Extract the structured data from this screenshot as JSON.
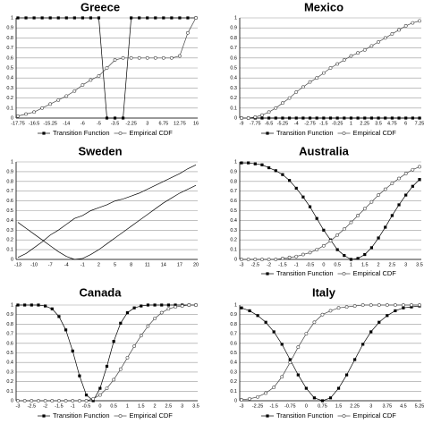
{
  "chart_data": [
    {
      "type": "line",
      "title": "Greece",
      "categories": [
        "-17.75",
        null,
        "-16.5",
        null,
        "-15.25",
        null,
        "-14",
        null,
        "-6",
        null,
        "-5",
        null,
        "-3.5",
        null,
        "-2.25",
        null,
        "3",
        null,
        "6.75",
        null,
        "12.75",
        null,
        "16"
      ],
      "series": [
        {
          "name": "Transition Function",
          "color": "#000000",
          "marker": "square",
          "values": [
            1,
            1,
            1,
            1,
            1,
            1,
            1,
            1,
            1,
            1,
            1,
            0,
            0,
            0,
            1,
            1,
            1,
            1,
            1,
            1,
            1,
            1,
            1
          ]
        },
        {
          "name": "Empirical CDF",
          "color": "#444444",
          "marker": "circle",
          "values": [
            0.02,
            0.04,
            0.06,
            0.1,
            0.14,
            0.18,
            0.22,
            0.27,
            0.33,
            0.38,
            0.42,
            0.5,
            0.58,
            0.6,
            0.6,
            0.6,
            0.6,
            0.6,
            0.6,
            0.6,
            0.62,
            0.85,
            1
          ]
        }
      ],
      "ylim": [
        0,
        1
      ],
      "yticks": [
        0,
        0.1,
        0.2,
        0.3,
        0.4,
        0.5,
        0.6,
        0.7,
        0.8,
        0.9,
        1
      ],
      "grid": true
    },
    {
      "type": "line",
      "title": "Mexico",
      "categories": [
        "-9",
        null,
        "-7.75",
        null,
        "-6.5",
        null,
        "-5.25",
        null,
        "-4",
        null,
        "-2.75",
        null,
        "-1.5",
        null,
        "-0.25",
        null,
        "1",
        null,
        "2.25",
        null,
        "3.5",
        null,
        "4.75",
        null,
        "6",
        null,
        "7.25"
      ],
      "series": [
        {
          "name": "Transition Function",
          "color": "#000000",
          "marker": "square",
          "values": [
            0,
            0,
            0,
            0,
            0,
            0,
            0,
            0,
            0,
            0,
            0,
            0,
            0,
            0,
            0,
            0,
            0,
            0,
            0,
            0,
            0,
            0,
            0,
            0,
            0,
            0,
            0
          ]
        },
        {
          "name": "Empirical CDF",
          "color": "#444444",
          "marker": "circle",
          "values": [
            0,
            0,
            0.01,
            0.03,
            0.06,
            0.1,
            0.15,
            0.2,
            0.26,
            0.31,
            0.36,
            0.4,
            0.45,
            0.5,
            0.54,
            0.58,
            0.62,
            0.65,
            0.68,
            0.72,
            0.76,
            0.8,
            0.84,
            0.88,
            0.92,
            0.95,
            0.97
          ]
        }
      ],
      "ylim": [
        0,
        1
      ],
      "yticks": [
        0,
        0.1,
        0.2,
        0.3,
        0.4,
        0.5,
        0.6,
        0.7,
        0.8,
        0.9,
        1
      ],
      "grid": true
    },
    {
      "type": "line",
      "title": "Sweden",
      "categories": [
        "-13",
        null,
        "-10",
        null,
        "-7",
        null,
        "-4",
        null,
        "-1",
        null,
        "2",
        null,
        "5",
        null,
        "8",
        null,
        "11",
        null,
        "14",
        null,
        "17",
        null,
        "20"
      ],
      "series": [
        {
          "color": "#000000",
          "marker": "none",
          "values": [
            0.38,
            0.32,
            0.26,
            0.2,
            0.14,
            0.08,
            0.03,
            0,
            0.01,
            0.05,
            0.1,
            0.16,
            0.22,
            0.28,
            0.34,
            0.4,
            0.46,
            0.52,
            0.58,
            0.63,
            0.68,
            0.72,
            0.76
          ]
        },
        {
          "color": "#000000",
          "marker": "none",
          "values": [
            0.02,
            0.06,
            0.12,
            0.18,
            0.25,
            0.3,
            0.36,
            0.42,
            0.45,
            0.5,
            0.53,
            0.56,
            0.6,
            0.62,
            0.65,
            0.68,
            0.72,
            0.76,
            0.8,
            0.84,
            0.88,
            0.93,
            0.97
          ]
        }
      ],
      "ylim": [
        0,
        1
      ],
      "yticks": [
        0,
        0.1,
        0.2,
        0.3,
        0.4,
        0.5,
        0.6,
        0.7,
        0.8,
        0.9,
        1
      ],
      "grid": true
    },
    {
      "type": "line",
      "title": "Australia",
      "categories": [
        "-3",
        null,
        "-2.5",
        null,
        "-2",
        null,
        "-1.5",
        null,
        "-1",
        null,
        "-0.5",
        null,
        "0",
        null,
        "0.5",
        null,
        "1",
        null,
        "1.5",
        null,
        "2",
        null,
        "2.5",
        null,
        "3",
        null,
        "3.5"
      ],
      "series": [
        {
          "name": "Transition Function",
          "color": "#000000",
          "marker": "square",
          "values": [
            0.99,
            0.99,
            0.98,
            0.97,
            0.94,
            0.91,
            0.87,
            0.81,
            0.73,
            0.64,
            0.54,
            0.42,
            0.3,
            0.2,
            0.1,
            0.04,
            0,
            0.01,
            0.05,
            0.12,
            0.22,
            0.33,
            0.45,
            0.56,
            0.66,
            0.75,
            0.82
          ]
        },
        {
          "name": "Empirical CDF",
          "color": "#444444",
          "marker": "circle",
          "values": [
            0,
            0,
            0,
            0,
            0,
            0,
            0.01,
            0.02,
            0.03,
            0.05,
            0.07,
            0.1,
            0.14,
            0.19,
            0.25,
            0.31,
            0.38,
            0.45,
            0.52,
            0.59,
            0.66,
            0.72,
            0.78,
            0.83,
            0.88,
            0.92,
            0.95
          ]
        }
      ],
      "ylim": [
        0,
        1
      ],
      "yticks": [
        0,
        0.1,
        0.2,
        0.3,
        0.4,
        0.5,
        0.6,
        0.7,
        0.8,
        0.9,
        1
      ],
      "grid": true
    },
    {
      "type": "line",
      "title": "Canada",
      "categories": [
        "-3",
        null,
        "-2.5",
        null,
        "-2",
        null,
        "-1.5",
        null,
        "-1",
        null,
        "-0.5",
        null,
        "0",
        null,
        "0.5",
        null,
        "1",
        null,
        "1.5",
        null,
        "2",
        null,
        "2.5",
        null,
        "3",
        null,
        "3.5"
      ],
      "series": [
        {
          "name": "Transition Function",
          "color": "#000000",
          "marker": "square",
          "values": [
            1,
            1,
            1,
            1,
            0.99,
            0.96,
            0.88,
            0.74,
            0.52,
            0.26,
            0.06,
            0,
            0.13,
            0.36,
            0.62,
            0.81,
            0.92,
            0.97,
            0.99,
            1,
            1,
            1,
            1,
            1,
            1,
            1,
            1
          ]
        },
        {
          "name": "Empirical CDF",
          "color": "#444444",
          "marker": "circle",
          "values": [
            0,
            0,
            0,
            0,
            0,
            0,
            0,
            0,
            0,
            0,
            0,
            0.02,
            0.06,
            0.13,
            0.22,
            0.33,
            0.45,
            0.57,
            0.68,
            0.78,
            0.86,
            0.92,
            0.96,
            0.98,
            0.99,
            1,
            1
          ]
        }
      ],
      "ylim": [
        0,
        1
      ],
      "yticks": [
        0,
        0.1,
        0.2,
        0.3,
        0.4,
        0.5,
        0.6,
        0.7,
        0.8,
        0.9,
        1
      ],
      "grid": true
    },
    {
      "type": "line",
      "title": "Italy",
      "categories": [
        "-3",
        null,
        "-2.25",
        null,
        "-1.5",
        null,
        "-0.75",
        null,
        "0",
        null,
        "0.75",
        null,
        "1.5",
        null,
        "2.25",
        null,
        "3",
        null,
        "3.75",
        null,
        "4.5",
        null,
        "5.25"
      ],
      "series": [
        {
          "name": "Transition Function",
          "color": "#000000",
          "marker": "square",
          "values": [
            0.97,
            0.94,
            0.89,
            0.82,
            0.72,
            0.59,
            0.43,
            0.27,
            0.13,
            0.03,
            0,
            0.03,
            0.13,
            0.27,
            0.43,
            0.59,
            0.72,
            0.82,
            0.89,
            0.94,
            0.97,
            0.98,
            0.99
          ]
        },
        {
          "name": "Empirical CDF",
          "color": "#444444",
          "marker": "circle",
          "values": [
            0.01,
            0.02,
            0.04,
            0.08,
            0.14,
            0.25,
            0.4,
            0.56,
            0.7,
            0.82,
            0.9,
            0.94,
            0.97,
            0.98,
            0.99,
            1,
            1,
            1,
            1,
            1,
            1,
            1,
            1
          ]
        }
      ],
      "ylim": [
        0,
        1
      ],
      "yticks": [
        0,
        0.1,
        0.2,
        0.3,
        0.4,
        0.5,
        0.6,
        0.7,
        0.8,
        0.9,
        1
      ],
      "grid": true
    }
  ]
}
